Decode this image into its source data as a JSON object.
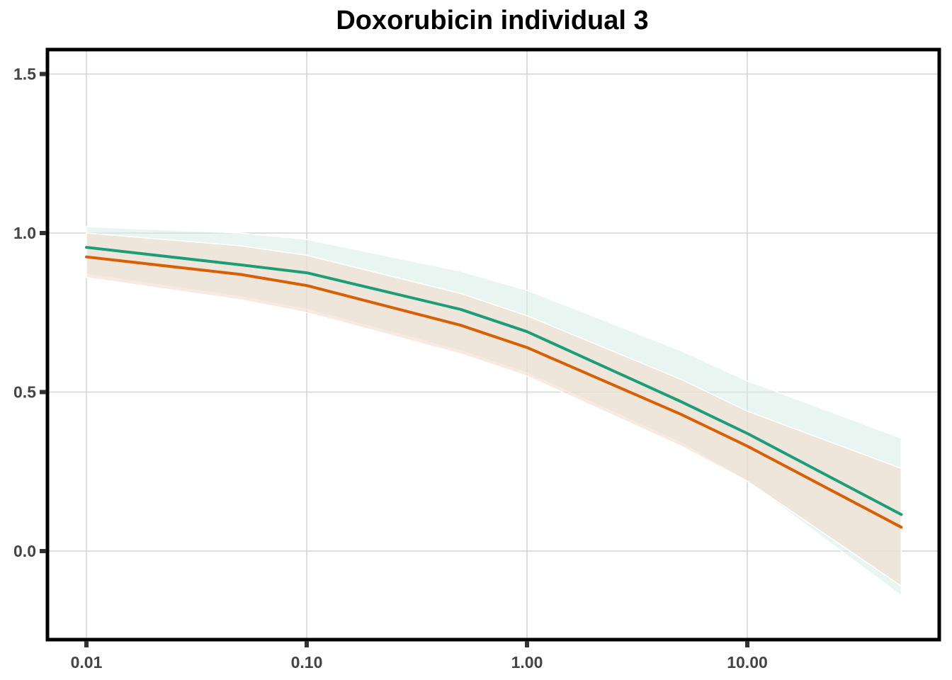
{
  "chart_data": {
    "type": "line",
    "title": "Doxorubicin individual 3",
    "xlabel": "",
    "ylabel": "",
    "x_scale": "log10",
    "xlim": [
      0.01,
      50
    ],
    "ylim": [
      -0.25,
      1.6
    ],
    "x_ticks": [
      0.01,
      0.1,
      1,
      10
    ],
    "x_tick_labels": [
      "0.01",
      "0.10",
      "1.00",
      "10.00"
    ],
    "y_ticks": [
      0,
      0.5,
      1,
      1.5
    ],
    "y_tick_labels": [
      "0.0",
      "0.5",
      "1.0",
      "1.5"
    ],
    "grid": true,
    "legend": "none",
    "series": [
      {
        "color": "#1b9e77",
        "x": [
          0.01,
          0.05,
          0.1,
          0.5,
          1,
          5,
          10,
          50
        ],
        "y": [
          0.955,
          0.9,
          0.875,
          0.76,
          0.69,
          0.47,
          0.37,
          0.115
        ],
        "lower": [
          0.87,
          0.8,
          0.76,
          0.63,
          0.56,
          0.34,
          0.22,
          -0.14
        ],
        "upper": [
          1.02,
          1.0,
          0.98,
          0.88,
          0.82,
          0.63,
          0.535,
          0.355
        ]
      },
      {
        "color": "#d95f02",
        "x": [
          0.01,
          0.05,
          0.1,
          0.5,
          1,
          5,
          10,
          50
        ],
        "y": [
          0.925,
          0.87,
          0.835,
          0.71,
          0.64,
          0.43,
          0.33,
          0.075
        ],
        "lower": [
          0.86,
          0.79,
          0.75,
          0.62,
          0.55,
          0.33,
          0.22,
          -0.11
        ],
        "upper": [
          1.0,
          0.96,
          0.93,
          0.81,
          0.74,
          0.54,
          0.44,
          0.26
        ]
      }
    ]
  }
}
